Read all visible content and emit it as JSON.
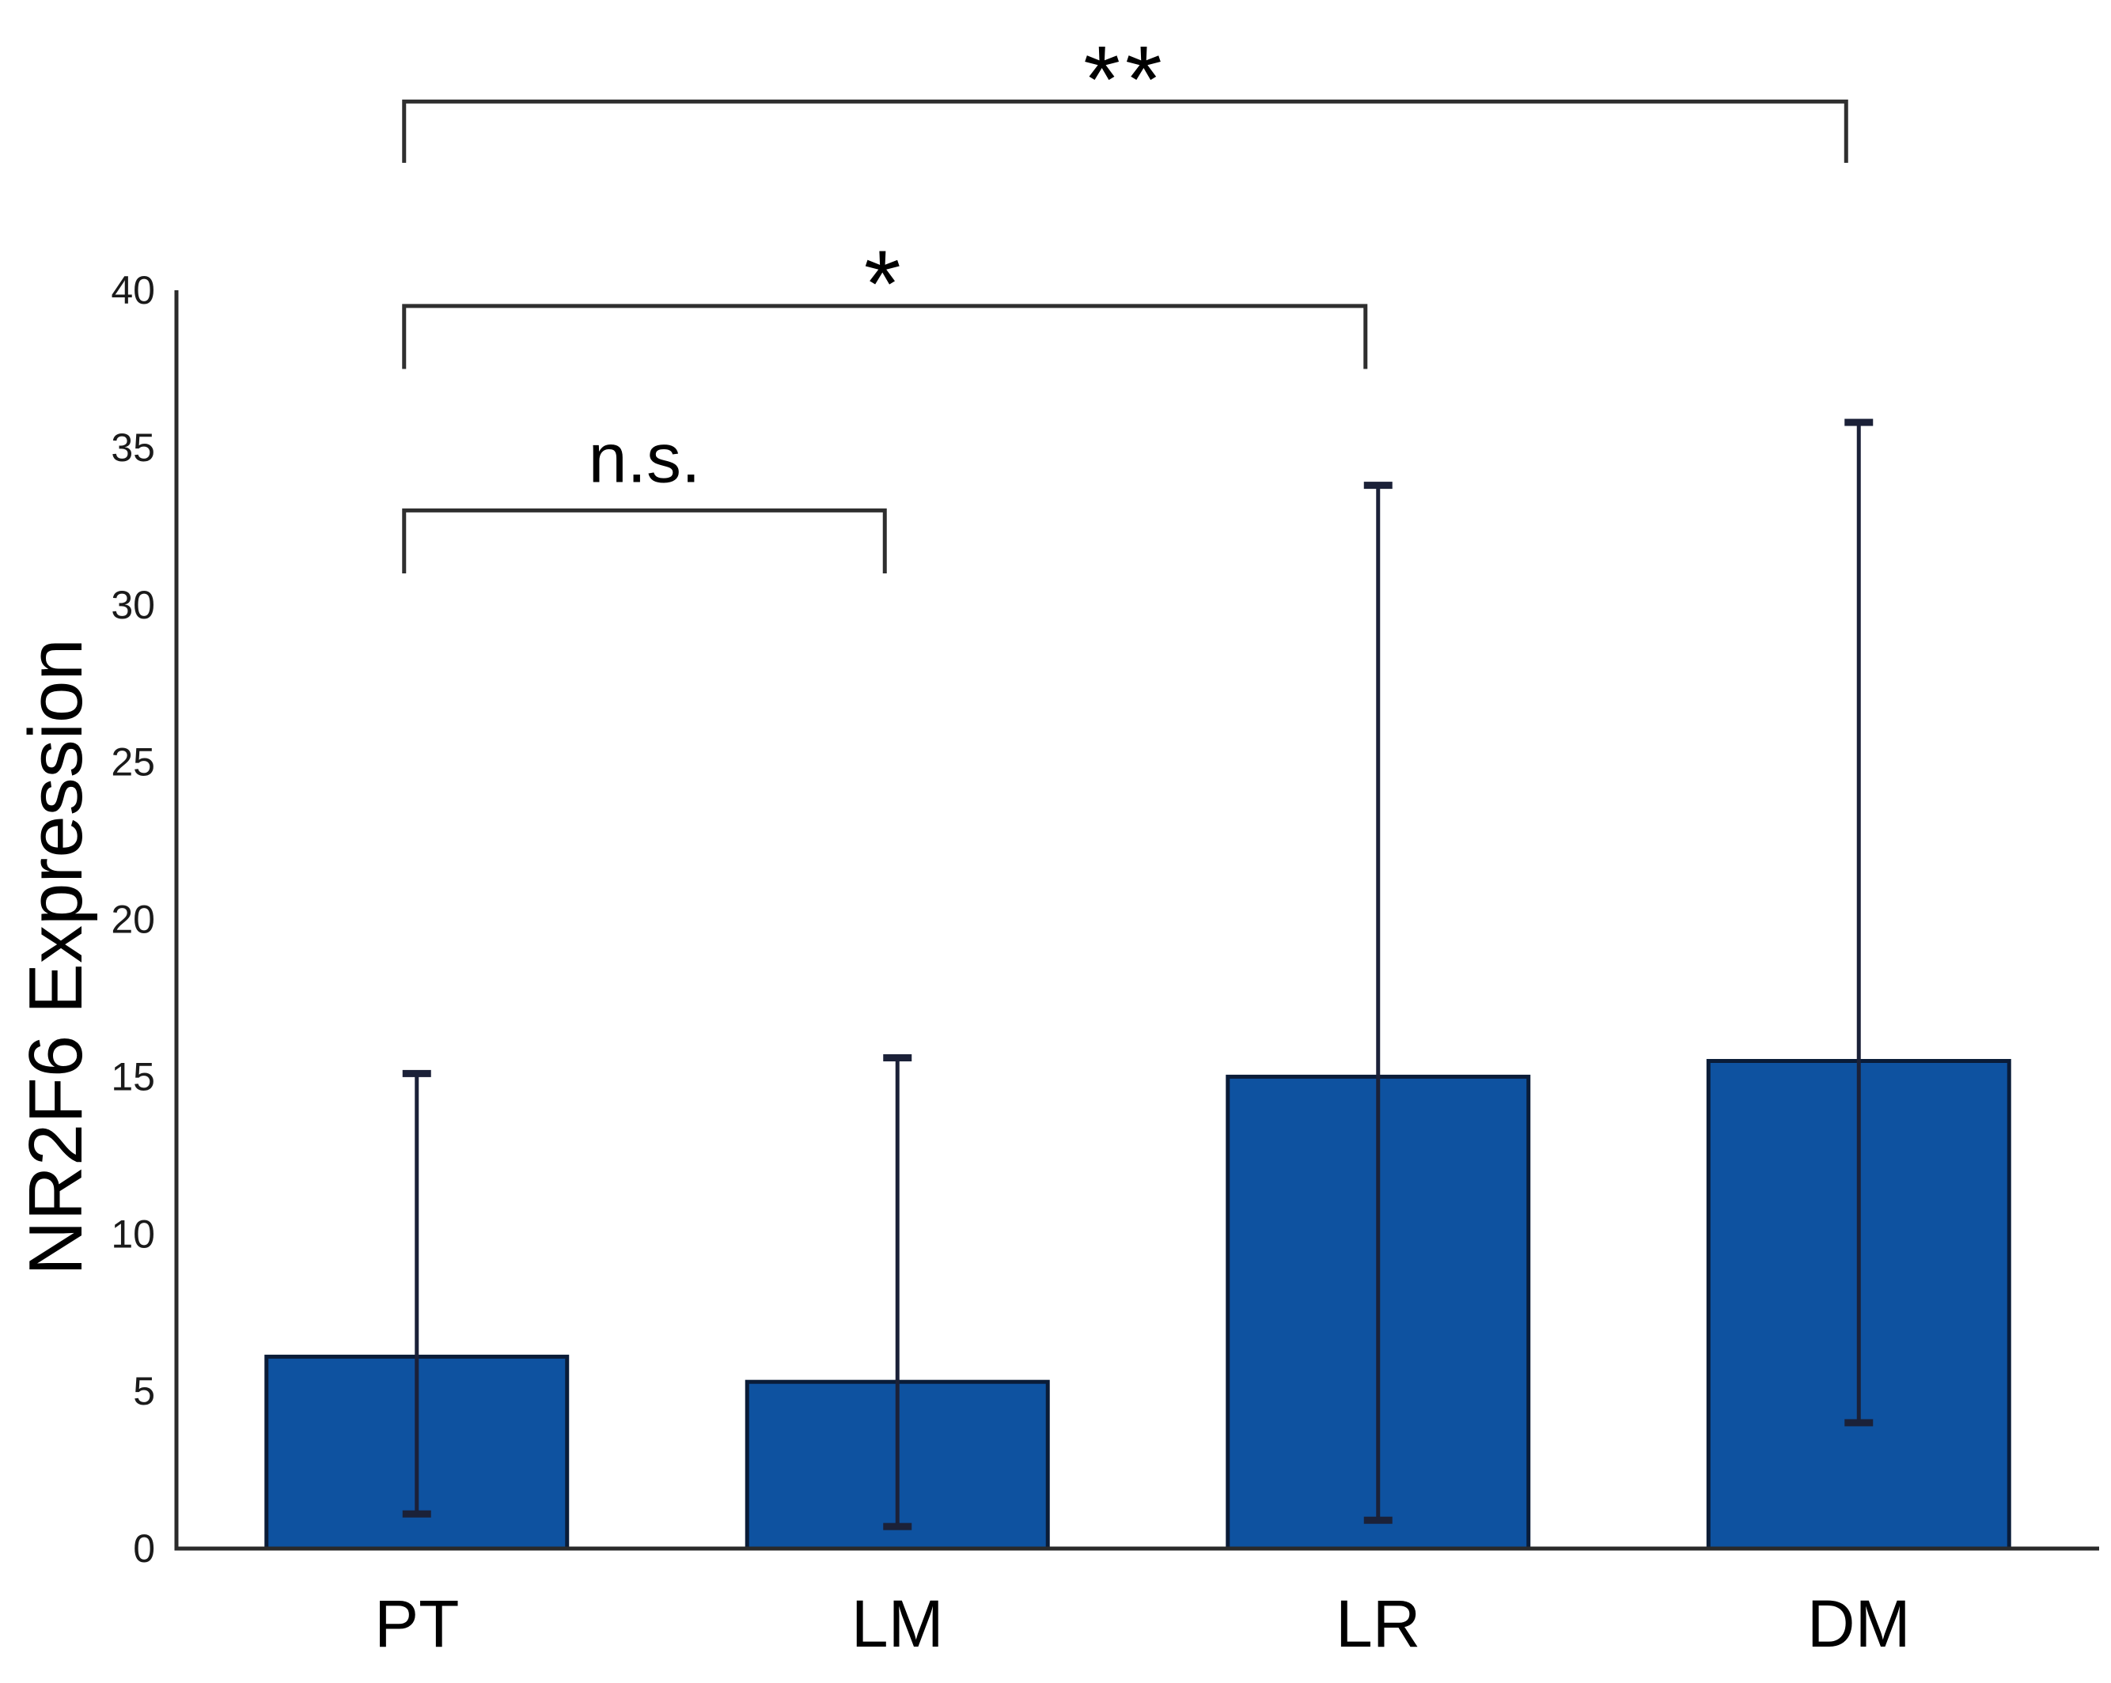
{
  "figure": {
    "background": "#ffffff"
  },
  "chart_data": {
    "type": "bar",
    "title": "",
    "categories": [
      "PT",
      "LM",
      "LR",
      "DM"
    ],
    "values": [
      6.1,
      5.3,
      15.0,
      15.5
    ],
    "series_name": "NR2F6 Expression",
    "error_bar_min": [
      1.1,
      0.7,
      0.9,
      4.0
    ],
    "error_bar_max": [
      15.1,
      15.6,
      33.8,
      35.8
    ],
    "xlabel": "",
    "ylabel": "NR2F6 Expression",
    "ylim": [
      0,
      40
    ],
    "ytick_step": 5,
    "ytick_labels": [
      "0",
      "5",
      "10",
      "15",
      "20",
      "25",
      "30",
      "35",
      "40"
    ],
    "grid": false,
    "legend": "none",
    "bar_color": "#0e52a0",
    "bar_border_color": "#0a1c38",
    "error_bar_color": "#1b2138",
    "axis_color": "#2a2a2a",
    "bracket_color": "#2f2f2f",
    "significance_brackets": [
      {
        "from": "PT",
        "to": "LM",
        "label": "n.s.",
        "height": 33.0,
        "drop": 2.0
      },
      {
        "from": "PT",
        "to": "LR",
        "label": "*",
        "height": 39.5,
        "drop": 2.0
      },
      {
        "from": "PT",
        "to": "DM",
        "label": "**",
        "height": 46.0,
        "drop": 1.95
      }
    ]
  }
}
